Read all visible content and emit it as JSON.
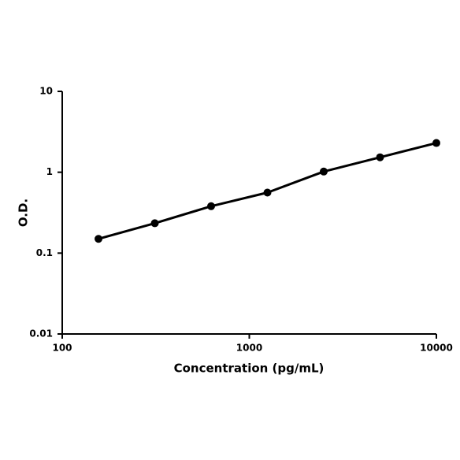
{
  "chart_data": {
    "type": "line",
    "x_label": "Concentration (pg/mL)",
    "y_label": "O.D.",
    "x": [
      156.25,
      312.5,
      625,
      1250,
      2500,
      5000,
      10000
    ],
    "series": [
      {
        "color": "#000000",
        "values": [
          0.15,
          0.234,
          0.38,
          0.56,
          1.02,
          1.53,
          2.3
        ]
      }
    ],
    "xlim": [
      100,
      10000
    ],
    "xticks": [
      100,
      1000,
      10000
    ],
    "ylim": [
      0.01,
      10
    ],
    "yticks": [
      0.01,
      0.1,
      1,
      10
    ],
    "xscale": "log",
    "yscale": "log",
    "grid": false
  }
}
